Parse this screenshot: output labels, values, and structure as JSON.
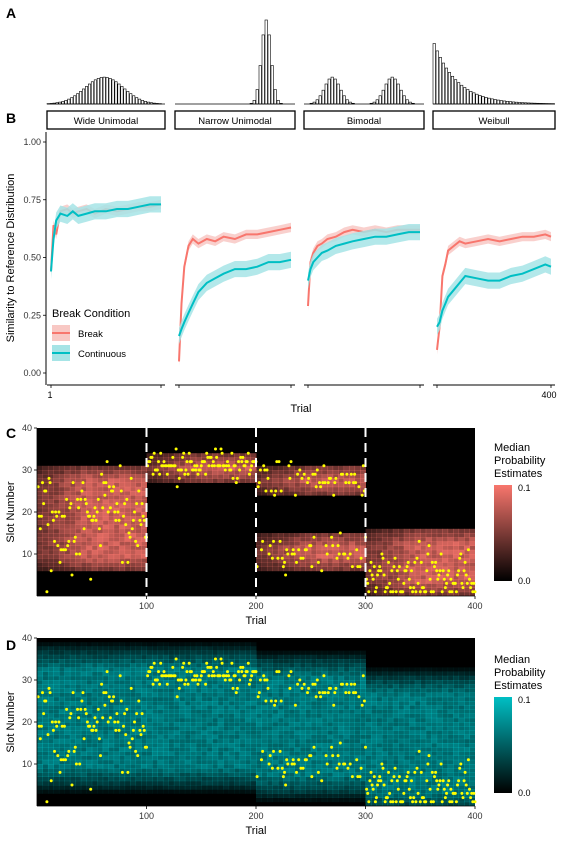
{
  "panel_labels": [
    "A",
    "B",
    "C",
    "D"
  ],
  "facets": [
    "Wide Unimodal",
    "Narrow Unimodal",
    "Bimodal",
    "Weibull"
  ],
  "colors": {
    "break": "#F8766D",
    "break_band": "#F8C8C4",
    "continuous": "#00BFC4",
    "continuous_band": "#A6E4E6",
    "dots": "#FFFF00",
    "heat_low": "#000000",
    "heat_high_break": "#F8766D",
    "heat_high_cont": "#00BFC4",
    "hist_fill": "#FFFFFF",
    "hist_stroke": "#000000"
  },
  "chart_data": [
    {
      "type": "bar",
      "panel": "A",
      "description_in_image": "",
      "facets": [
        {
          "name": "Wide Unimodal",
          "shape": "gaussian",
          "mean": 20,
          "sd": 6.5,
          "relative_peak": 0.32
        },
        {
          "name": "Narrow Unimodal",
          "shape": "gaussian",
          "mean": 31,
          "sd": 1.6,
          "relative_peak": 1.0
        },
        {
          "name": "Bimodal",
          "shape": "bimodal",
          "means": [
            10,
            30
          ],
          "sd": 2.6,
          "relative_peak": 0.32
        },
        {
          "name": "Weibull",
          "shape": "decay",
          "start": 1,
          "rate": 0.13,
          "relative_peak": 0.72
        }
      ],
      "slots": 40
    },
    {
      "type": "line",
      "panel": "B",
      "ylabel": "Similarity to Reference Distribution",
      "xlabel": "Trial",
      "ylim": [
        0,
        1
      ],
      "yticks": [
        "0.00",
        "0.25",
        "0.50",
        "0.75",
        "1.00"
      ],
      "xticks_first_facet": [
        "1"
      ],
      "xticks_last_facet": [
        "400"
      ],
      "legend": {
        "title": "Break Condition",
        "position": "bottom-left",
        "entries": [
          "Break",
          "Continuous"
        ]
      },
      "x_range": [
        1,
        400
      ],
      "series": [
        {
          "name": "Break",
          "facet": "Wide Unimodal",
          "x": [
            1,
            10,
            20,
            35,
            60,
            80,
            100,
            130,
            160,
            200,
            240,
            280,
            320,
            360,
            400
          ],
          "y": [
            0.44,
            0.64,
            0.6,
            0.7,
            0.71,
            0.69,
            0.7,
            0.71,
            0.69,
            0.71,
            0.7,
            0.71,
            0.72,
            0.72,
            0.73
          ]
        },
        {
          "name": "Continuous",
          "facet": "Wide Unimodal",
          "x": [
            1,
            10,
            20,
            35,
            60,
            80,
            100,
            130,
            160,
            200,
            240,
            280,
            320,
            360,
            400
          ],
          "y": [
            0.44,
            0.58,
            0.66,
            0.69,
            0.68,
            0.7,
            0.68,
            0.69,
            0.7,
            0.7,
            0.71,
            0.71,
            0.72,
            0.73,
            0.73
          ]
        },
        {
          "name": "Break",
          "facet": "Narrow Unimodal",
          "x": [
            1,
            10,
            20,
            35,
            50,
            70,
            100,
            130,
            160,
            200,
            240,
            280,
            320,
            360,
            400
          ],
          "y": [
            0.05,
            0.3,
            0.46,
            0.55,
            0.58,
            0.56,
            0.58,
            0.57,
            0.59,
            0.58,
            0.6,
            0.6,
            0.61,
            0.62,
            0.63
          ]
        },
        {
          "name": "Continuous",
          "facet": "Narrow Unimodal",
          "x": [
            1,
            10,
            20,
            35,
            50,
            70,
            100,
            130,
            160,
            200,
            240,
            280,
            320,
            360,
            400
          ],
          "y": [
            0.16,
            0.19,
            0.22,
            0.26,
            0.3,
            0.35,
            0.39,
            0.41,
            0.43,
            0.45,
            0.45,
            0.46,
            0.48,
            0.48,
            0.49
          ]
        },
        {
          "name": "Break",
          "facet": "Bimodal",
          "x": [
            1,
            10,
            20,
            35,
            50,
            70,
            100,
            130,
            160,
            200,
            240,
            280,
            320,
            360,
            400
          ],
          "y": [
            0.29,
            0.48,
            0.52,
            0.55,
            0.56,
            0.58,
            0.59,
            0.61,
            0.62,
            0.61,
            0.62,
            0.61,
            0.62,
            0.62,
            0.62
          ]
        },
        {
          "name": "Continuous",
          "facet": "Bimodal",
          "x": [
            1,
            10,
            20,
            35,
            50,
            70,
            100,
            130,
            160,
            200,
            240,
            280,
            320,
            360,
            400
          ],
          "y": [
            0.4,
            0.45,
            0.48,
            0.5,
            0.52,
            0.53,
            0.55,
            0.56,
            0.57,
            0.58,
            0.59,
            0.59,
            0.6,
            0.61,
            0.61
          ]
        },
        {
          "name": "Break",
          "facet": "Weibull",
          "x": [
            1,
            10,
            20,
            30,
            40,
            60,
            80,
            100,
            140,
            180,
            220,
            260,
            300,
            340,
            380,
            400
          ],
          "y": [
            0.1,
            0.2,
            0.42,
            0.47,
            0.53,
            0.55,
            0.57,
            0.56,
            0.57,
            0.58,
            0.57,
            0.58,
            0.59,
            0.59,
            0.6,
            0.59
          ]
        },
        {
          "name": "Continuous",
          "facet": "Weibull",
          "x": [
            1,
            10,
            20,
            30,
            40,
            60,
            80,
            100,
            140,
            180,
            220,
            260,
            300,
            340,
            380,
            400
          ],
          "y": [
            0.2,
            0.22,
            0.27,
            0.3,
            0.33,
            0.36,
            0.39,
            0.42,
            0.41,
            0.4,
            0.4,
            0.42,
            0.43,
            0.45,
            0.47,
            0.46
          ]
        }
      ]
    },
    {
      "type": "heatmap",
      "panel": "C",
      "xlabel": "Trial",
      "ylabel": "Slot Number",
      "xlim": [
        0,
        400
      ],
      "ylim": [
        0,
        40
      ],
      "xticks": [
        "100",
        "200",
        "300",
        "400"
      ],
      "yticks": [
        "10",
        "20",
        "30",
        "40"
      ],
      "block_boundaries": [
        100,
        200,
        300
      ],
      "legend": {
        "title": "Median Probability Estimates",
        "min": "0.0",
        "max": "0.1"
      },
      "blocks": [
        {
          "x": [
            0,
            100
          ],
          "bands": [
            [
              6,
              31
            ]
          ],
          "dots_mean": [
            18
          ],
          "dots_sd": 6
        },
        {
          "x": [
            100,
            200
          ],
          "bands": [
            [
              27,
              34
            ]
          ],
          "dots_mean": [
            31
          ],
          "dots_sd": 1.6
        },
        {
          "x": [
            200,
            300
          ],
          "bands": [
            [
              24,
              31
            ],
            [
              6,
              15
            ]
          ],
          "dots_mean": [
            28,
            10
          ],
          "dots_sd": 2.2
        },
        {
          "x": [
            300,
            400
          ],
          "bands": [
            [
              0,
              16
            ]
          ],
          "dots_mean": [
            4
          ],
          "dots_sd": 3.5
        }
      ]
    },
    {
      "type": "heatmap",
      "panel": "D",
      "xlabel": "Trial",
      "ylabel": "Slot Number",
      "xlim": [
        0,
        400
      ],
      "ylim": [
        0,
        40
      ],
      "xticks": [
        "100",
        "200",
        "300",
        "400"
      ],
      "yticks": [
        "10",
        "20",
        "30",
        "40"
      ],
      "legend": {
        "title": "Median Probability Estimates",
        "min": "0.0",
        "max": "0.1"
      },
      "blocks": [
        {
          "x": [
            0,
            100
          ],
          "bands": [
            [
              6,
              36
            ]
          ],
          "dots_mean": [
            18
          ],
          "dots_sd": 6
        },
        {
          "x": [
            100,
            200
          ],
          "bands": [
            [
              6,
              36
            ]
          ],
          "dots_mean": [
            31
          ],
          "dots_sd": 1.6
        },
        {
          "x": [
            200,
            300
          ],
          "bands": [
            [
              4,
              34
            ]
          ],
          "dots_mean": [
            28,
            10
          ],
          "dots_sd": 2.2
        },
        {
          "x": [
            300,
            400
          ],
          "bands": [
            [
              0,
              30
            ]
          ],
          "dots_mean": [
            4
          ],
          "dots_sd": 3.5
        }
      ]
    }
  ]
}
